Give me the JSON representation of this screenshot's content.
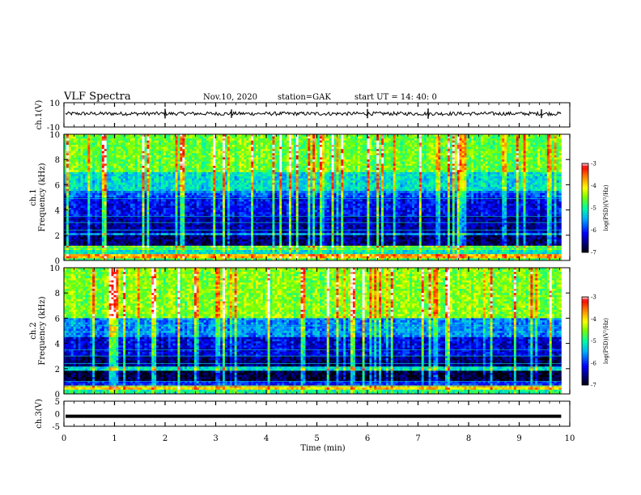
{
  "header": {
    "title": "VLF Spectra",
    "date": "Nov.10, 2020",
    "station": "station=GAK",
    "start": "start  UT =   14: 40: 0"
  },
  "chart_data": [
    {
      "type": "line",
      "panel": "ch1_waveform",
      "ylabel": "ch.1(V)",
      "ylim": [
        -10,
        10
      ],
      "yticks": [
        "10",
        "-10"
      ],
      "baseline_v": 1,
      "amplitude_v": 1.5
    },
    {
      "type": "heatmap",
      "panel": "ch1_spectrogram",
      "ylabel": "ch.1\nFrequency (kHz)",
      "ylim": [
        0,
        10
      ],
      "yticks": [
        "0",
        "2",
        "4",
        "6",
        "8",
        "10"
      ],
      "colorbar": {
        "label": "log(PSD)(V²/Hz)",
        "range": [
          -7,
          -3
        ],
        "ticks": [
          "-3",
          "-4",
          "-5",
          "-6",
          "-7"
        ],
        "colors": [
          "#000000",
          "#00008b",
          "#0000ff",
          "#00bfff",
          "#00ff7f",
          "#7fff00",
          "#ffff00",
          "#ff7f00",
          "#ff0000",
          "#ffffff"
        ]
      },
      "bands": [
        {
          "f_low": 0.0,
          "f_high": 0.2,
          "level": 0.55
        },
        {
          "f_low": 0.2,
          "f_high": 0.5,
          "level": 0.8
        },
        {
          "f_low": 0.5,
          "f_high": 0.8,
          "level": 0.45
        },
        {
          "f_low": 0.8,
          "f_high": 1.1,
          "level": 0.6
        },
        {
          "f_low": 1.1,
          "f_high": 2.0,
          "level": 0.1
        },
        {
          "f_low": 2.0,
          "f_high": 2.2,
          "level": 0.35
        },
        {
          "f_low": 2.2,
          "f_high": 3.5,
          "level": 0.15
        },
        {
          "f_low": 3.5,
          "f_high": 5.0,
          "level": 0.22
        },
        {
          "f_low": 5.0,
          "f_high": 5.5,
          "level": 0.3
        },
        {
          "f_low": 5.5,
          "f_high": 7.0,
          "level": 0.45
        },
        {
          "f_low": 7.0,
          "f_high": 10.0,
          "level": 0.6
        }
      ]
    },
    {
      "type": "heatmap",
      "panel": "ch2_spectrogram",
      "ylabel": "ch.2\nFrequency (kHz)",
      "ylim": [
        0,
        10
      ],
      "yticks": [
        "0",
        "2",
        "4",
        "6",
        "8",
        "10"
      ],
      "colorbar": {
        "label": "log(PSD)(V²/Hz)",
        "range": [
          -7,
          -3
        ],
        "ticks": [
          "-3",
          "-4",
          "-5",
          "-6",
          "-7"
        ]
      },
      "bands": [
        {
          "f_low": 0.0,
          "f_high": 0.3,
          "level": 0.5
        },
        {
          "f_low": 0.3,
          "f_high": 0.6,
          "level": 0.75
        },
        {
          "f_low": 0.6,
          "f_high": 1.0,
          "level": 0.25
        },
        {
          "f_low": 1.0,
          "f_high": 1.8,
          "level": 0.05
        },
        {
          "f_low": 1.8,
          "f_high": 2.1,
          "level": 0.45
        },
        {
          "f_low": 2.1,
          "f_high": 3.0,
          "level": 0.1
        },
        {
          "f_low": 3.0,
          "f_high": 4.5,
          "level": 0.2
        },
        {
          "f_low": 4.5,
          "f_high": 6.0,
          "level": 0.35
        },
        {
          "f_low": 6.0,
          "f_high": 10.0,
          "level": 0.62
        }
      ]
    },
    {
      "type": "line",
      "panel": "ch3_waveform",
      "ylabel": "ch.3(V)",
      "ylim": [
        -5,
        5
      ],
      "yticks": [
        "5",
        "0",
        "-5"
      ],
      "constant_v": -1
    }
  ],
  "xaxis": {
    "label": "Time (min)",
    "range": [
      0,
      10
    ],
    "ticks": [
      "0",
      "1",
      "2",
      "3",
      "4",
      "5",
      "6",
      "7",
      "8",
      "9",
      "10"
    ],
    "data_end_min": 9.83
  }
}
